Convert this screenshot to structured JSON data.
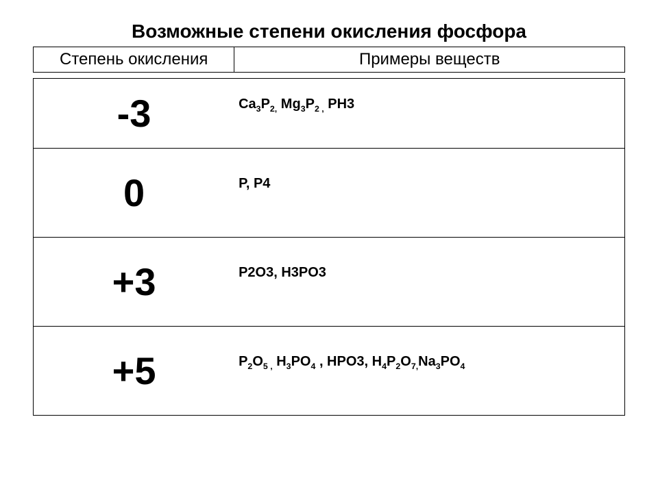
{
  "title": "Возможные степени окисления фосфора",
  "header": {
    "state": "Степень окисления",
    "examples": "Примеры веществ"
  },
  "rows": [
    {
      "state": "-3",
      "examples_html": "Ca<sub>3</sub>P<sub>2,</sub>  Mg<sub>3</sub>P<sub>2 ,</sub> PH3",
      "tall": false
    },
    {
      "state": "0",
      "examples_html": "P,  P4",
      "tall": true
    },
    {
      "state": "+3",
      "examples_html": "P2O3,   H3PO3",
      "tall": true
    },
    {
      "state": "+5",
      "examples_html": "P<sub>2</sub>O<sub>5 ,</sub>  H<sub>3</sub>PO<sub>4</sub>   ,  HPO3,  H<sub>4</sub>P<sub>2</sub>O<sub>7,</sub>Na<sub>3</sub>PO<sub>4</sub>",
      "tall": true
    }
  ],
  "colors": {
    "text": "#000000",
    "background": "#ffffff",
    "border": "#000000"
  }
}
